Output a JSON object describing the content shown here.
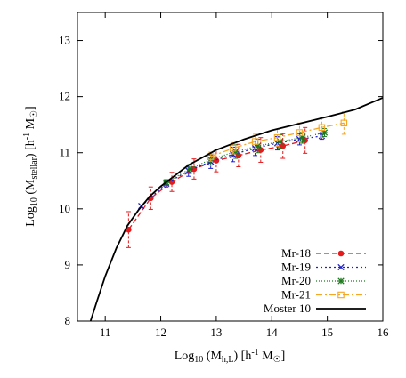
{
  "chart_data": {
    "type": "line",
    "xlabel": "Log₁₀ (M_h,L) [h⁻¹ M☉]",
    "ylabel": "Log₁₀ (M_stellar) [h⁻¹ M☉]",
    "xlim": [
      10.5,
      16
    ],
    "ylim": [
      8,
      13.5
    ],
    "xticks": [
      11,
      12,
      13,
      14,
      15,
      16
    ],
    "yticks": [
      8,
      9,
      10,
      11,
      12,
      13
    ],
    "grid": false,
    "legend_position": "bottom-right",
    "series": [
      {
        "name": "Mr-18",
        "color": "#e41a1c",
        "marker": "circle",
        "dash": "6,3",
        "points": [
          {
            "x": 11.42,
            "y": 9.63,
            "err": 0.32
          },
          {
            "x": 11.82,
            "y": 10.19,
            "err": 0.2
          },
          {
            "x": 12.2,
            "y": 10.48,
            "err": 0.17
          },
          {
            "x": 12.6,
            "y": 10.71,
            "err": 0.18
          },
          {
            "x": 13.0,
            "y": 10.86,
            "err": 0.2
          },
          {
            "x": 13.4,
            "y": 10.95,
            "err": 0.2
          },
          {
            "x": 13.8,
            "y": 11.05,
            "err": 0.22
          },
          {
            "x": 14.2,
            "y": 11.12,
            "err": 0.22
          },
          {
            "x": 14.6,
            "y": 11.22,
            "err": 0.23
          }
        ]
      },
      {
        "name": "Mr-19",
        "color": "#1f1fcf",
        "marker": "x",
        "dash": "2,3",
        "points": [
          {
            "x": 11.65,
            "y": 10.05,
            "err": 0.0
          },
          {
            "x": 12.1,
            "y": 10.45,
            "err": 0.06
          },
          {
            "x": 12.5,
            "y": 10.68,
            "err": 0.1
          },
          {
            "x": 12.9,
            "y": 10.84,
            "err": 0.12
          },
          {
            "x": 13.3,
            "y": 10.97,
            "err": 0.13
          },
          {
            "x": 13.7,
            "y": 11.08,
            "err": 0.13
          },
          {
            "x": 14.1,
            "y": 11.17,
            "err": 0.12
          },
          {
            "x": 14.5,
            "y": 11.24,
            "err": 0.1
          },
          {
            "x": 14.9,
            "y": 11.3,
            "err": 0.06
          }
        ]
      },
      {
        "name": "Mr-20",
        "color": "#1e7b1e",
        "marker": "star",
        "dash": "1,2",
        "points": [
          {
            "x": 12.1,
            "y": 10.47,
            "err": 0.05
          },
          {
            "x": 12.52,
            "y": 10.71,
            "err": 0.08
          },
          {
            "x": 12.9,
            "y": 10.88,
            "err": 0.1
          },
          {
            "x": 13.35,
            "y": 11.02,
            "err": 0.12
          },
          {
            "x": 13.75,
            "y": 11.12,
            "err": 0.12
          },
          {
            "x": 14.15,
            "y": 11.2,
            "err": 0.12
          },
          {
            "x": 14.55,
            "y": 11.27,
            "err": 0.1
          },
          {
            "x": 14.95,
            "y": 11.36,
            "err": 0.07
          }
        ]
      },
      {
        "name": "Mr-21",
        "color": "#f5a623",
        "marker": "square",
        "dash": "7,3,2,3",
        "points": [
          {
            "x": 12.9,
            "y": 10.93,
            "err": 0.08
          },
          {
            "x": 13.3,
            "y": 11.08,
            "err": 0.1
          },
          {
            "x": 13.7,
            "y": 11.2,
            "err": 0.13
          },
          {
            "x": 14.1,
            "y": 11.27,
            "err": 0.15
          },
          {
            "x": 14.5,
            "y": 11.36,
            "err": 0.17
          },
          {
            "x": 14.9,
            "y": 11.45,
            "err": 0.18
          },
          {
            "x": 15.3,
            "y": 11.53,
            "err": 0.2
          }
        ]
      },
      {
        "name": "Moster 10",
        "color": "#000000",
        "marker": "none",
        "dash": "",
        "points": [
          {
            "x": 10.72,
            "y": 7.95
          },
          {
            "x": 10.85,
            "y": 8.35
          },
          {
            "x": 11.0,
            "y": 8.8
          },
          {
            "x": 11.2,
            "y": 9.3
          },
          {
            "x": 11.4,
            "y": 9.7
          },
          {
            "x": 11.6,
            "y": 9.98
          },
          {
            "x": 11.8,
            "y": 10.22
          },
          {
            "x": 12.0,
            "y": 10.4
          },
          {
            "x": 12.5,
            "y": 10.78
          },
          {
            "x": 13.0,
            "y": 11.05
          },
          {
            "x": 13.5,
            "y": 11.24
          },
          {
            "x": 14.0,
            "y": 11.4
          },
          {
            "x": 14.5,
            "y": 11.52
          },
          {
            "x": 15.0,
            "y": 11.64
          },
          {
            "x": 15.5,
            "y": 11.77
          },
          {
            "x": 16.0,
            "y": 11.98
          }
        ]
      }
    ]
  }
}
